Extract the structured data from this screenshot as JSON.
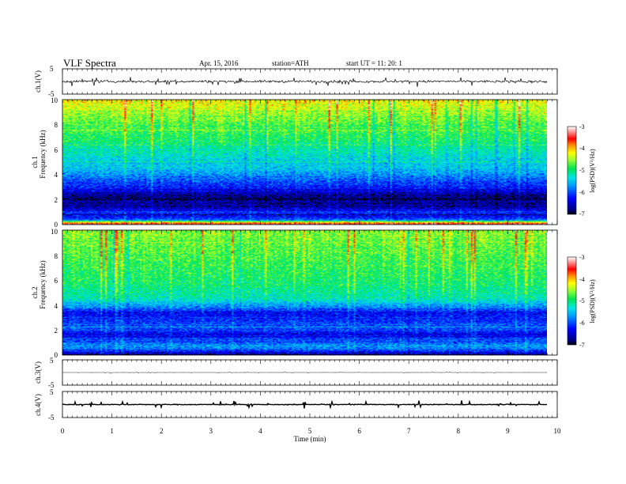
{
  "chart_data": {
    "type": "heatmap",
    "title": "VLF  Spectra",
    "date": "Apr. 15, 2016",
    "station": "station=ATH",
    "start": "start  UT  =    11: 20: 1",
    "x_axis": {
      "label": "Time  (min)",
      "range": [
        0,
        10
      ],
      "ticks": [
        "0",
        "1",
        "2",
        "3",
        "4",
        "5",
        "6",
        "7",
        "8",
        "9",
        "10"
      ],
      "data_end_min": 9.8
    },
    "panels": [
      {
        "id": "ch1-waveform",
        "type": "line",
        "ylabel": "ch.1(V)",
        "ylim": [
          -5,
          5
        ],
        "ytick_labels": [
          "5",
          "-5"
        ],
        "baseline": 0,
        "amplitude": 0.8,
        "spikes": 1.8
      },
      {
        "id": "ch1-spectrogram",
        "type": "heatmap",
        "ylabel_channel": "ch.1",
        "ylabel": "Frequency  (kHz)",
        "ylim": [
          0,
          10
        ],
        "ytick_labels": [
          "0",
          "2",
          "4",
          "6",
          "8",
          "10"
        ],
        "colorbar": {
          "label": "log(PSD)(V²/Hz)",
          "range": [
            -7,
            -3
          ],
          "tick_labels": [
            "-3",
            "-4",
            "-5",
            "-6",
            "-7"
          ]
        },
        "profile_log_psd": [
          {
            "f": 0.0,
            "v": -3.3
          },
          {
            "f": 0.2,
            "v": -4.2
          },
          {
            "f": 0.35,
            "v": -5.8
          },
          {
            "f": 0.6,
            "v": -6.3
          },
          {
            "f": 1.0,
            "v": -6.2
          },
          {
            "f": 1.4,
            "v": -6.6
          },
          {
            "f": 2.0,
            "v": -6.8
          },
          {
            "f": 2.6,
            "v": -6.6
          },
          {
            "f": 3.0,
            "v": -6.2
          },
          {
            "f": 3.5,
            "v": -6.0
          },
          {
            "f": 4.0,
            "v": -5.7
          },
          {
            "f": 4.5,
            "v": -5.5
          },
          {
            "f": 5.5,
            "v": -5.3
          },
          {
            "f": 6.5,
            "v": -5.0
          },
          {
            "f": 7.5,
            "v": -4.8
          },
          {
            "f": 8.5,
            "v": -4.6
          },
          {
            "f": 9.5,
            "v": -4.3
          },
          {
            "f": 10.0,
            "v": -4.2
          }
        ]
      },
      {
        "id": "ch2-spectrogram",
        "type": "heatmap",
        "ylabel_channel": "ch.2",
        "ylabel": "Frequency  (kHz)",
        "ylim": [
          0,
          10
        ],
        "ytick_labels": [
          "0",
          "2",
          "4",
          "6",
          "8",
          "10"
        ],
        "colorbar": {
          "label": "log(PSD)(V²/Hz)",
          "range": [
            -7,
            -3
          ],
          "tick_labels": [
            "-3",
            "-4",
            "-5",
            "-6",
            "-7"
          ]
        },
        "profile_log_psd": [
          {
            "f": 0.0,
            "v": -6.8
          },
          {
            "f": 0.3,
            "v": -6.2
          },
          {
            "f": 0.6,
            "v": -5.8
          },
          {
            "f": 1.0,
            "v": -5.9
          },
          {
            "f": 1.6,
            "v": -6.3
          },
          {
            "f": 2.2,
            "v": -6.0
          },
          {
            "f": 2.8,
            "v": -6.1
          },
          {
            "f": 3.4,
            "v": -6.3
          },
          {
            "f": 3.8,
            "v": -5.8
          },
          {
            "f": 4.5,
            "v": -5.2
          },
          {
            "f": 5.5,
            "v": -5.0
          },
          {
            "f": 6.5,
            "v": -4.9
          },
          {
            "f": 7.5,
            "v": -4.8
          },
          {
            "f": 8.5,
            "v": -4.7
          },
          {
            "f": 9.5,
            "v": -4.6
          },
          {
            "f": 10.0,
            "v": -4.6
          }
        ]
      },
      {
        "id": "ch3-waveform",
        "type": "line",
        "ylabel": "ch.3(V)",
        "ylim": [
          -5,
          5
        ],
        "ytick_labels": [
          "5",
          "-5"
        ],
        "baseline": 0,
        "amplitude": 0.05,
        "spikes": 0.3
      },
      {
        "id": "ch4-waveform",
        "type": "line",
        "ylabel": "ch.4(V)",
        "ylim": [
          -5,
          5
        ],
        "ytick_labels": [
          "5",
          "-5"
        ],
        "baseline": 0,
        "amplitude": 0.25,
        "spikes": 1.5
      }
    ],
    "grid": false
  }
}
